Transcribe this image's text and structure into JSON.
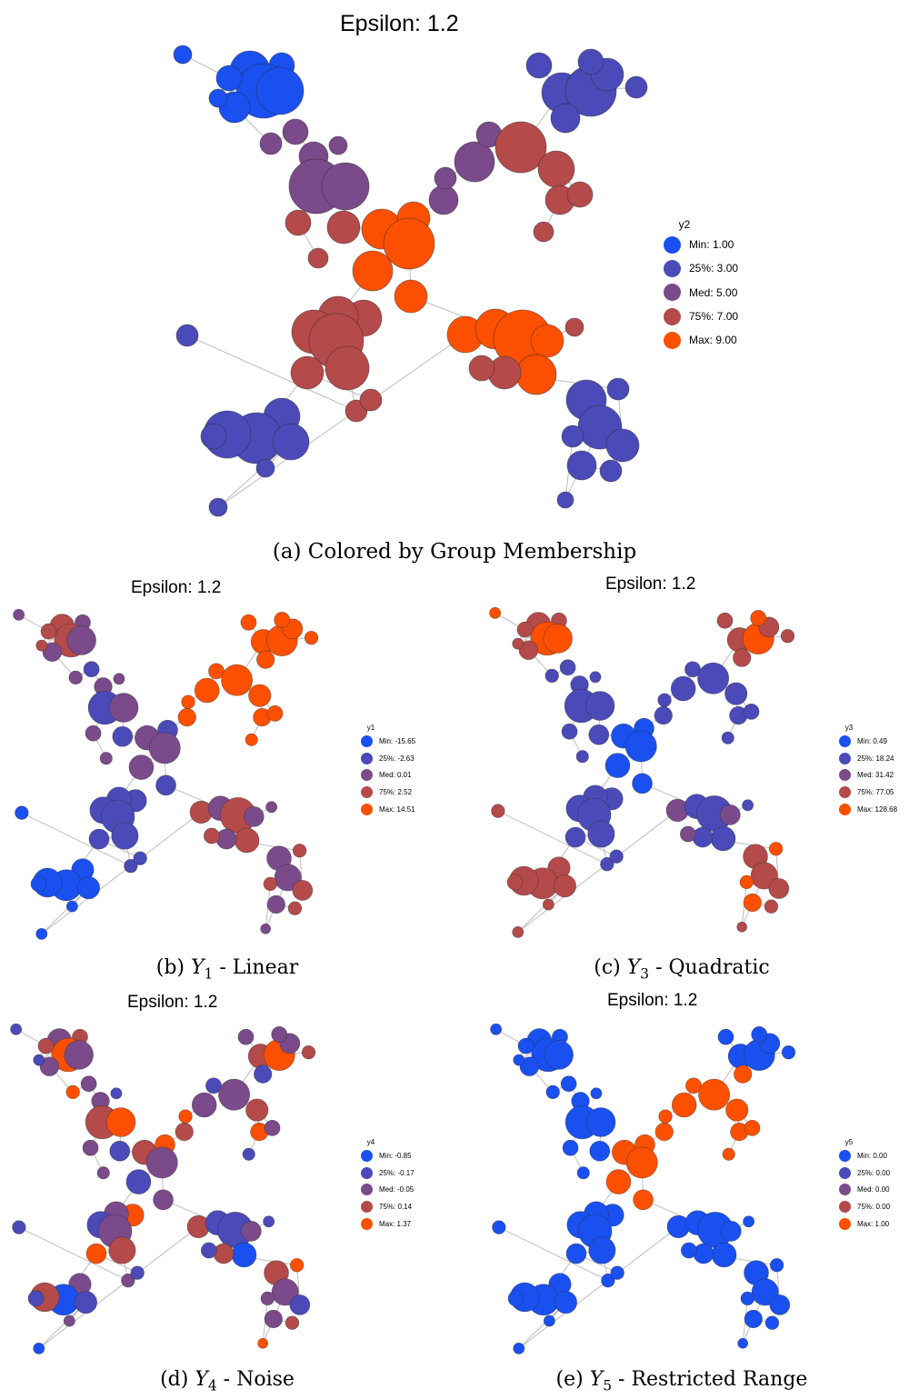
{
  "panels": [
    {
      "id": "a",
      "title": "Epsilon: 1.2",
      "caption": "(a) Colored by Group Membership",
      "legend": {
        "title": "y2",
        "items": [
          {
            "label": "Min: 1.00",
            "color": "#1a50f0"
          },
          {
            "label": "25%: 3.00",
            "color": "#4a4ab8"
          },
          {
            "label": "Med: 5.00",
            "color": "#7a4a8a"
          },
          {
            "label": "75%: 7.00",
            "color": "#b44a4a"
          },
          {
            "label": "Max: 9.00",
            "color": "#fc5000"
          }
        ]
      }
    },
    {
      "id": "b",
      "title": "Epsilon: 1.2",
      "caption": "(b) Y1 - Linear",
      "caption_parts": {
        "prefix": "(b) ",
        "var": "Y",
        "sub": "1",
        "suffix": " - Linear"
      },
      "legend": {
        "title": "y1",
        "items": [
          {
            "label": "Min: -15.65",
            "color": "#1a50f0"
          },
          {
            "label": "25%: -2.63",
            "color": "#4a4ab8"
          },
          {
            "label": "Med: 0.01",
            "color": "#7a4a8a"
          },
          {
            "label": "75%: 2.52",
            "color": "#b44a4a"
          },
          {
            "label": "Max: 14.51",
            "color": "#fc5000"
          }
        ]
      }
    },
    {
      "id": "c",
      "title": "Epsilon: 1.2",
      "caption": "(c) Y3 - Quadratic",
      "caption_parts": {
        "prefix": "(c) ",
        "var": "Y",
        "sub": "3",
        "suffix": " - Quadratic"
      },
      "legend": {
        "title": "y3",
        "items": [
          {
            "label": "Min: 0.49",
            "color": "#1a50f0"
          },
          {
            "label": "25%: 18.24",
            "color": "#4a4ab8"
          },
          {
            "label": "Med: 31.42",
            "color": "#7a4a8a"
          },
          {
            "label": "75%: 77.05",
            "color": "#b44a4a"
          },
          {
            "label": "Max: 128.68",
            "color": "#fc5000"
          }
        ]
      }
    },
    {
      "id": "d",
      "title": "Epsilon: 1.2",
      "caption": "(d) Y4 - Noise",
      "caption_parts": {
        "prefix": "(d) ",
        "var": "Y",
        "sub": "4",
        "suffix": " - Noise"
      },
      "legend": {
        "title": "y4",
        "items": [
          {
            "label": "Min: -0.85",
            "color": "#1a50f0"
          },
          {
            "label": "25%: -0.17",
            "color": "#4a4ab8"
          },
          {
            "label": "Med: -0.05",
            "color": "#7a4a8a"
          },
          {
            "label": "75%: 0.14",
            "color": "#b44a4a"
          },
          {
            "label": "Max: 1.37",
            "color": "#fc5000"
          }
        ]
      }
    },
    {
      "id": "e",
      "title": "Epsilon: 1.2",
      "caption": "(e) Y5 - Restricted Range",
      "caption_parts": {
        "prefix": "(e) ",
        "var": "Y",
        "sub": "5",
        "suffix": " - Restricted Range"
      },
      "legend": {
        "title": "y5",
        "items": [
          {
            "label": "Min: 0.00",
            "color": "#1a50f0"
          },
          {
            "label": "25%: 0.00",
            "color": "#4a4ab8"
          },
          {
            "label": "Med: 0.00",
            "color": "#7a4a8a"
          },
          {
            "label": "75%: 0.00",
            "color": "#b44a4a"
          },
          {
            "label": "Max: 1.00",
            "color": "#fc5000"
          }
        ]
      }
    }
  ],
  "colors": {
    "edge": "#bdbdbd",
    "node_stroke": "#2a2a2a",
    "scale": [
      "#1a50f0",
      "#4a4ab8",
      "#7a4a8a",
      "#b44a4a",
      "#fc5000"
    ]
  }
}
